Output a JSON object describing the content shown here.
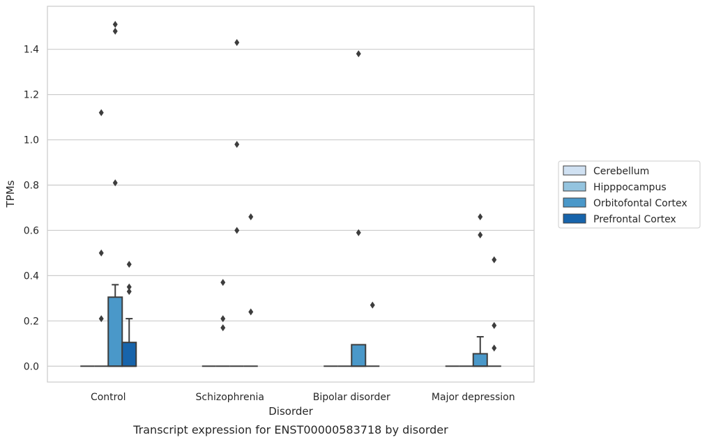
{
  "chart_data": {
    "type": "box",
    "title": "",
    "caption": "Transcript expression for ENST00000583718 by disorder",
    "xlabel": "Disorder",
    "ylabel": "TPMs",
    "ylim": [
      -0.07,
      1.59
    ],
    "yticks": [
      0.0,
      0.2,
      0.4,
      0.6,
      0.8,
      1.0,
      1.2,
      1.4
    ],
    "ytick_labels": [
      "0.0",
      "0.2",
      "0.4",
      "0.6",
      "0.8",
      "1.0",
      "1.2",
      "1.4"
    ],
    "grid": "horizontal",
    "legend_position": "right",
    "categories": [
      "Control",
      "Schizophrenia",
      "Bipolar disorder",
      "Major depression"
    ],
    "series": [
      {
        "name": "Cerebellum",
        "color": "#d0e1f2",
        "boxes": [
          {
            "q1": 0,
            "median": 0,
            "q3": 0,
            "whisker_low": 0,
            "whisker_high": 0,
            "outliers": []
          },
          {
            "q1": 0,
            "median": 0,
            "q3": 0,
            "whisker_low": 0,
            "whisker_high": 0,
            "outliers": []
          },
          {
            "q1": 0,
            "median": 0,
            "q3": 0,
            "whisker_low": 0,
            "whisker_high": 0,
            "outliers": []
          },
          {
            "q1": 0,
            "median": 0,
            "q3": 0,
            "whisker_low": 0,
            "whisker_high": 0,
            "outliers": []
          }
        ]
      },
      {
        "name": "Hipppocampus",
        "color": "#94c4df",
        "boxes": [
          {
            "q1": 0,
            "median": 0,
            "q3": 0,
            "whisker_low": 0,
            "whisker_high": 0,
            "outliers": [
              1.12,
              0.5,
              0.21
            ]
          },
          {
            "q1": 0,
            "median": 0,
            "q3": 0,
            "whisker_low": 0,
            "whisker_high": 0,
            "outliers": [
              0.37,
              0.21,
              0.17
            ]
          },
          {
            "q1": 0,
            "median": 0,
            "q3": 0,
            "whisker_low": 0,
            "whisker_high": 0,
            "outliers": []
          },
          {
            "q1": 0,
            "median": 0,
            "q3": 0,
            "whisker_low": 0,
            "whisker_high": 0,
            "outliers": []
          }
        ]
      },
      {
        "name": "Orbitofontal Cortex",
        "color": "#4a98c9",
        "boxes": [
          {
            "q1": 0,
            "median": 0,
            "q3": 0.305,
            "whisker_low": 0,
            "whisker_high": 0.36,
            "outliers": [
              1.51,
              1.48,
              0.81
            ]
          },
          {
            "q1": 0,
            "median": 0,
            "q3": 0,
            "whisker_low": 0,
            "whisker_high": 0,
            "outliers": [
              1.43,
              0.98,
              0.6
            ]
          },
          {
            "q1": 0,
            "median": 0,
            "q3": 0.095,
            "whisker_low": 0,
            "whisker_high": 0.095,
            "outliers": [
              1.38,
              0.59
            ]
          },
          {
            "q1": 0,
            "median": 0,
            "q3": 0.055,
            "whisker_low": 0,
            "whisker_high": 0.13,
            "outliers": [
              0.66,
              0.58
            ]
          }
        ]
      },
      {
        "name": "Prefrontal Cortex",
        "color": "#1764ab",
        "boxes": [
          {
            "q1": 0,
            "median": 0,
            "q3": 0.105,
            "whisker_low": 0,
            "whisker_high": 0.21,
            "outliers": [
              0.45,
              0.35,
              0.33
            ]
          },
          {
            "q1": 0,
            "median": 0,
            "q3": 0,
            "whisker_low": 0,
            "whisker_high": 0,
            "outliers": [
              0.66,
              0.24
            ]
          },
          {
            "q1": 0,
            "median": 0,
            "q3": 0,
            "whisker_low": 0,
            "whisker_high": 0,
            "outliers": [
              0.27
            ]
          },
          {
            "q1": 0,
            "median": 0,
            "q3": 0,
            "whisker_low": 0,
            "whisker_high": 0,
            "outliers": [
              0.47,
              0.18,
              0.08
            ]
          }
        ]
      }
    ],
    "hue_outliers_note": "",
    "colors": {
      "axis": "#cccccc",
      "grid": "#cccccc",
      "box_edge": "#3d3d3d",
      "outlier": "#3d3d3d"
    }
  }
}
